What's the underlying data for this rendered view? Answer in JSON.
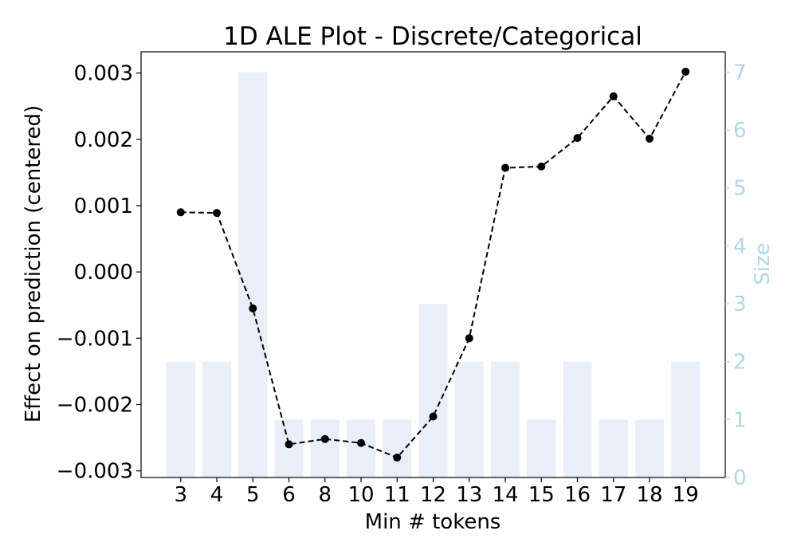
{
  "chart_data": {
    "type": "bar+line",
    "title": "1D ALE Plot - Discrete/Categorical",
    "xlabel": "Min # tokens",
    "ylabel": "Effect on prediction (centered)",
    "y2label": "Size",
    "categories": [
      "3",
      "4",
      "5",
      "6",
      "8",
      "10",
      "11",
      "12",
      "13",
      "14",
      "15",
      "16",
      "17",
      "18",
      "19"
    ],
    "ylim": [
      -0.0031,
      0.00332
    ],
    "y2lim": [
      0,
      7.35
    ],
    "yticks": [
      -0.003,
      -0.002,
      -0.001,
      0.0,
      0.001,
      0.002,
      0.003
    ],
    "ytick_labels": [
      "−0.003",
      "−0.002",
      "−0.001",
      "0.000",
      "0.001",
      "0.002",
      "0.003"
    ],
    "y2ticks": [
      0,
      1,
      2,
      3,
      4,
      5,
      6,
      7
    ],
    "y2tick_labels": [
      "0",
      "1",
      "2",
      "3",
      "4",
      "5",
      "6",
      "7"
    ],
    "grid": false,
    "series": [
      {
        "type": "line",
        "axis": "left",
        "style": "dashed",
        "marker": "circle",
        "color": "#000000",
        "values": [
          0.0009,
          0.00089,
          -0.00055,
          -0.0026,
          -0.00252,
          -0.00258,
          -0.0028,
          -0.00218,
          -0.001,
          0.00157,
          0.00159,
          0.00202,
          0.00265,
          0.00201,
          0.00302
        ]
      },
      {
        "type": "bar",
        "axis": "right",
        "color": "#e8eff8",
        "values": [
          2,
          2,
          7,
          1,
          1,
          1,
          1,
          3,
          2,
          2,
          1,
          2,
          1,
          1,
          2
        ]
      }
    ],
    "colors": {
      "axis": "#000000",
      "right_axis": "#add8e6",
      "bar": "#e8eff8",
      "line": "#000000"
    }
  }
}
